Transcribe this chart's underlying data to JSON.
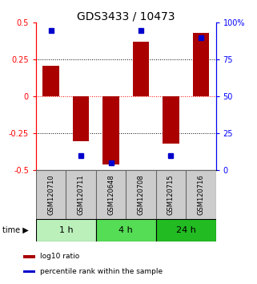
{
  "title": "GDS3433 / 10473",
  "samples": [
    "GSM120710",
    "GSM120711",
    "GSM120648",
    "GSM120708",
    "GSM120715",
    "GSM120716"
  ],
  "log10_ratio": [
    0.21,
    -0.3,
    -0.46,
    0.37,
    -0.32,
    0.43
  ],
  "percentile_rank": [
    95,
    10,
    5,
    95,
    10,
    90
  ],
  "groups": [
    {
      "label": "1 h",
      "start": 0,
      "end": 2,
      "color": "#bbf0bb"
    },
    {
      "label": "4 h",
      "start": 2,
      "end": 4,
      "color": "#55dd55"
    },
    {
      "label": "24 h",
      "start": 4,
      "end": 6,
      "color": "#22bb22"
    }
  ],
  "bar_color": "#aa0000",
  "dot_color": "#0000cc",
  "ylim_left": [
    -0.5,
    0.5
  ],
  "ylim_right": [
    0,
    100
  ],
  "yticks_left": [
    -0.5,
    -0.25,
    0.0,
    0.25,
    0.5
  ],
  "yticks_right": [
    0,
    25,
    50,
    75,
    100
  ],
  "ytick_labels_left": [
    "-0.5",
    "-0.25",
    "0",
    "0.25",
    "0.5"
  ],
  "ytick_labels_right": [
    "0",
    "25",
    "50",
    "75",
    "100%"
  ],
  "hlines": [
    -0.25,
    0.0,
    0.25
  ],
  "hline_colors": [
    "black",
    "red",
    "black"
  ],
  "hline_styles": [
    "dotted",
    "dotted",
    "dotted"
  ],
  "bar_width": 0.55,
  "sample_box_color": "#cccccc",
  "sample_box_border": "#666666",
  "background_color": "#ffffff",
  "title_fontsize": 10,
  "tick_fontsize": 7,
  "sample_fontsize": 6,
  "group_label_fontsize": 8,
  "time_label": "time",
  "legend_items": [
    {
      "color": "#aa0000",
      "label": "log10 ratio"
    },
    {
      "color": "#0000cc",
      "label": "percentile rank within the sample"
    }
  ]
}
